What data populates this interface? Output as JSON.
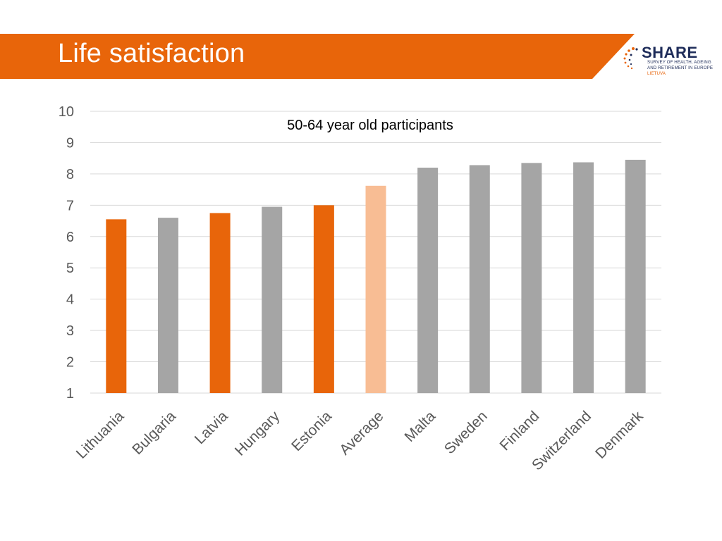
{
  "slide": {
    "title": "Life satisfaction",
    "accent_color": "#E8650A"
  },
  "logo": {
    "word": "SHARE",
    "line1": "SURVEY OF HEALTH, AGEING",
    "line2": "AND RETIREMENT IN EUROPE",
    "line3": "LIETUVA",
    "icon": "share-logo-icon"
  },
  "chart_data": {
    "type": "bar",
    "title": "50-64 year old participants",
    "xlabel": "",
    "ylabel": "",
    "ylim": [
      1,
      10
    ],
    "yticks": [
      1,
      2,
      3,
      4,
      5,
      6,
      7,
      8,
      9,
      10
    ],
    "grid": true,
    "legend": "none",
    "categories": [
      "Lithuania",
      "Bulgaria",
      "Latvia",
      "Hungary",
      "Estonia",
      "Average",
      "Malta",
      "Sweden",
      "Finland",
      "Switzerland",
      "Denmark"
    ],
    "values": [
      6.55,
      6.6,
      6.75,
      6.95,
      7.0,
      7.62,
      8.2,
      8.28,
      8.35,
      8.37,
      8.45
    ],
    "colors": [
      "#E8650A",
      "#A5A5A5",
      "#E8650A",
      "#A5A5A5",
      "#E8650A",
      "#F8BD94",
      "#A5A5A5",
      "#A5A5A5",
      "#A5A5A5",
      "#A5A5A5",
      "#A5A5A5"
    ]
  }
}
